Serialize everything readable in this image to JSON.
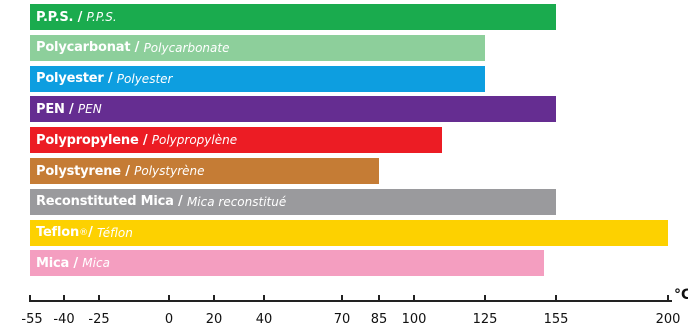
{
  "chart_data": {
    "type": "bar",
    "orientation": "horizontal",
    "unit": "°C",
    "xlim": [
      -55,
      200
    ],
    "ticks": [
      "-55",
      "-40",
      "-25",
      "0",
      "20",
      "40",
      "70",
      "85",
      "100",
      "125",
      "155",
      "200"
    ],
    "series": [
      {
        "bold": "P.P.S.",
        "sep": " / ",
        "italic": "P.P.S.",
        "sup": "",
        "value": 155,
        "color": "#1aab4e"
      },
      {
        "bold": "Polycarbonat",
        "sep": " / ",
        "italic": "Polycarbonate",
        "sup": "",
        "value": 125,
        "color": "#8dcf9b"
      },
      {
        "bold": "Polyester",
        "sep": " / ",
        "italic": "Polyester",
        "sup": "",
        "value": 125,
        "color": "#0d9ee0"
      },
      {
        "bold": "PEN",
        "sep": " / ",
        "italic": "PEN",
        "sup": "",
        "value": 155,
        "color": "#652d91"
      },
      {
        "bold": "Polypropylene",
        "sep": " / ",
        "italic": "Polypropylène",
        "sup": "",
        "value": 110,
        "color": "#ec1c24"
      },
      {
        "bold": "Polystyrene",
        "sep": " / ",
        "italic": "Polystyrène",
        "sup": "",
        "value": 85,
        "color": "#c57c35"
      },
      {
        "bold": "Reconstituted Mica",
        "sep": " / ",
        "italic": "Mica reconstitué",
        "sup": "",
        "value": 155,
        "color": "#9a9a9d"
      },
      {
        "bold": "Teflon",
        "sep": "/ ",
        "italic": "Téflon",
        "sup": "®",
        "value": 200,
        "color": "#fdd100"
      },
      {
        "bold": "Mica",
        "sep": " / ",
        "italic": "Mica",
        "sup": "",
        "value": 150,
        "color": "#f49ec0"
      }
    ]
  }
}
